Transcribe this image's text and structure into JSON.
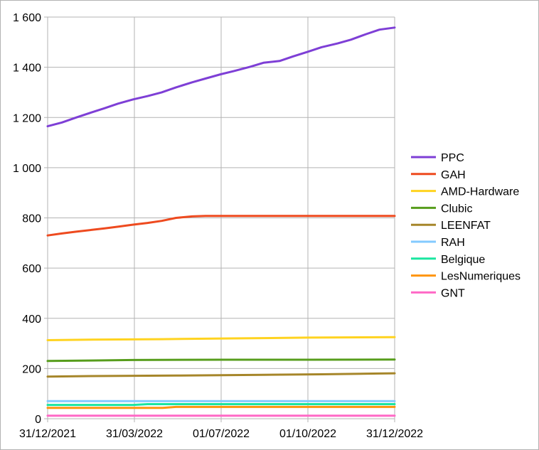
{
  "chart_data": {
    "type": "line",
    "title": "",
    "xlabel": "",
    "ylabel": "",
    "ylim": [
      0,
      1600
    ],
    "yticks": [
      "0",
      "200",
      "400",
      "600",
      "800",
      "1 000",
      "1 200",
      "1 400",
      "1 600"
    ],
    "xlim": [
      "2021-12-31",
      "2022-12-31"
    ],
    "xticks": [
      "31/12/2021",
      "31/03/2022",
      "01/07/2022",
      "01/10/2022",
      "31/12/2022"
    ],
    "grid": "horizontal",
    "legend_position": "right",
    "series": [
      {
        "name": "PPC",
        "color": "#7e3fd6",
        "dates": [
          "2021-12-31",
          "2022-01-15",
          "2022-01-30",
          "2022-02-15",
          "2022-03-01",
          "2022-03-15",
          "2022-03-31",
          "2022-04-15",
          "2022-04-30",
          "2022-05-15",
          "2022-06-01",
          "2022-06-15",
          "2022-07-01",
          "2022-07-15",
          "2022-08-01",
          "2022-08-15",
          "2022-09-01",
          "2022-09-15",
          "2022-10-01",
          "2022-10-15",
          "2022-11-01",
          "2022-11-15",
          "2022-12-01",
          "2022-12-15",
          "2022-12-31"
        ],
        "values": [
          1165,
          1180,
          1200,
          1220,
          1237,
          1255,
          1272,
          1285,
          1300,
          1320,
          1340,
          1355,
          1372,
          1385,
          1402,
          1418,
          1425,
          1443,
          1462,
          1480,
          1495,
          1510,
          1532,
          1550,
          1558
        ]
      },
      {
        "name": "GAH",
        "color": "#ee4a1f",
        "dates": [
          "2021-12-31",
          "2022-01-15",
          "2022-01-30",
          "2022-02-15",
          "2022-03-01",
          "2022-03-15",
          "2022-03-31",
          "2022-04-15",
          "2022-04-30",
          "2022-05-15",
          "2022-06-01",
          "2022-06-15",
          "2022-07-01",
          "2022-08-01",
          "2022-09-01",
          "2022-10-01",
          "2022-11-01",
          "2022-12-01",
          "2022-12-31"
        ],
        "values": [
          730,
          738,
          745,
          752,
          758,
          765,
          773,
          780,
          788,
          800,
          806,
          808,
          808,
          808,
          808,
          808,
          808,
          808,
          808
        ]
      },
      {
        "name": "AMD-Hardware",
        "color": "#ffd320",
        "dates": [
          "2021-12-31",
          "2022-02-15",
          "2022-04-30",
          "2022-07-15",
          "2022-10-01",
          "2022-12-31"
        ],
        "values": [
          313,
          315,
          317,
          320,
          323,
          325
        ]
      },
      {
        "name": "Clubic",
        "color": "#579d1c",
        "dates": [
          "2021-12-31",
          "2022-02-15",
          "2022-03-31",
          "2022-07-01",
          "2022-10-01",
          "2022-12-31"
        ],
        "values": [
          230,
          232,
          234,
          235,
          235,
          236
        ]
      },
      {
        "name": "LEENFAT",
        "color": "#a6862a",
        "dates": [
          "2021-12-31",
          "2022-02-15",
          "2022-05-15",
          "2022-08-15",
          "2022-10-15",
          "2022-12-15",
          "2022-12-31"
        ],
        "values": [
          168,
          170,
          172,
          175,
          177,
          180,
          181
        ]
      },
      {
        "name": "RAH",
        "color": "#83caff",
        "dates": [
          "2021-12-31",
          "2022-12-31"
        ],
        "values": [
          70,
          70
        ]
      },
      {
        "name": "Belgique",
        "color": "#1ae6a0",
        "dates": [
          "2021-12-31",
          "2022-03-31",
          "2022-04-15",
          "2022-12-31"
        ],
        "values": [
          55,
          55,
          58,
          58
        ]
      },
      {
        "name": "LesNumeriques",
        "color": "#ff950e",
        "dates": [
          "2021-12-31",
          "2022-05-01",
          "2022-05-15",
          "2022-12-31"
        ],
        "values": [
          43,
          43,
          47,
          47
        ]
      },
      {
        "name": "GNT",
        "color": "#ff69c6",
        "dates": [
          "2021-12-31",
          "2022-12-31"
        ],
        "values": [
          12,
          12
        ]
      }
    ]
  }
}
